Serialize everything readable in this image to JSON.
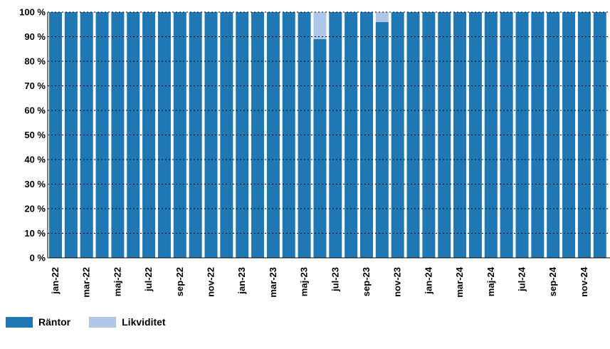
{
  "chart_data": {
    "type": "bar",
    "stacked": true,
    "categories": [
      "jan-22",
      "feb-22",
      "mar-22",
      "apr-22",
      "maj-22",
      "jun-22",
      "jul-22",
      "aug-22",
      "sep-22",
      "okt-22",
      "nov-22",
      "dec-22",
      "jan-23",
      "feb-23",
      "mar-23",
      "apr-23",
      "maj-23",
      "jun-23",
      "jul-23",
      "aug-23",
      "sep-23",
      "okt-23",
      "nov-23",
      "dec-23",
      "jan-24",
      "feb-24",
      "mar-24",
      "apr-24",
      "maj-24",
      "jun-24",
      "jul-24",
      "aug-24",
      "sep-24",
      "okt-24",
      "nov-24",
      "dec-24"
    ],
    "tick_labels": [
      "jan-22",
      "mar-22",
      "maj-22",
      "jul-22",
      "sep-22",
      "nov-22",
      "jan-23",
      "mar-23",
      "maj-23",
      "jul-23",
      "sep-23",
      "nov-23",
      "jan-24",
      "mar-24",
      "maj-24",
      "jul-24",
      "sep-24",
      "nov-24",
      ""
    ],
    "series": [
      {
        "name": "Räntor",
        "color": "#1f77b4",
        "values": [
          100,
          100,
          100,
          100,
          100,
          100,
          100,
          100,
          100,
          100,
          100,
          100,
          100,
          100,
          100,
          100,
          100,
          89,
          100,
          100,
          100,
          96,
          100,
          100,
          100,
          100,
          100,
          100,
          100,
          100,
          100,
          100,
          100,
          100,
          100,
          100
        ]
      },
      {
        "name": "Likviditet",
        "color": "#aec7e8",
        "values": [
          0,
          0,
          0,
          0,
          0,
          0,
          0,
          0,
          0,
          0,
          0,
          0,
          0,
          0,
          0,
          0,
          0,
          11,
          0,
          0,
          0,
          4,
          0,
          0,
          0,
          0,
          0,
          0,
          0,
          0,
          0,
          0,
          0,
          0,
          0,
          0
        ]
      }
    ],
    "yticks": [
      "0 %",
      "10 %",
      "20 %",
      "30 %",
      "40 %",
      "50 %",
      "60 %",
      "70 %",
      "80 %",
      "90 %",
      "100 %"
    ],
    "ylim": [
      0,
      100
    ],
    "grid": "horizontal dashed",
    "legend": "bottom-left"
  },
  "legend": {
    "series1_label": "Räntor",
    "series2_label": "Likviditet"
  }
}
